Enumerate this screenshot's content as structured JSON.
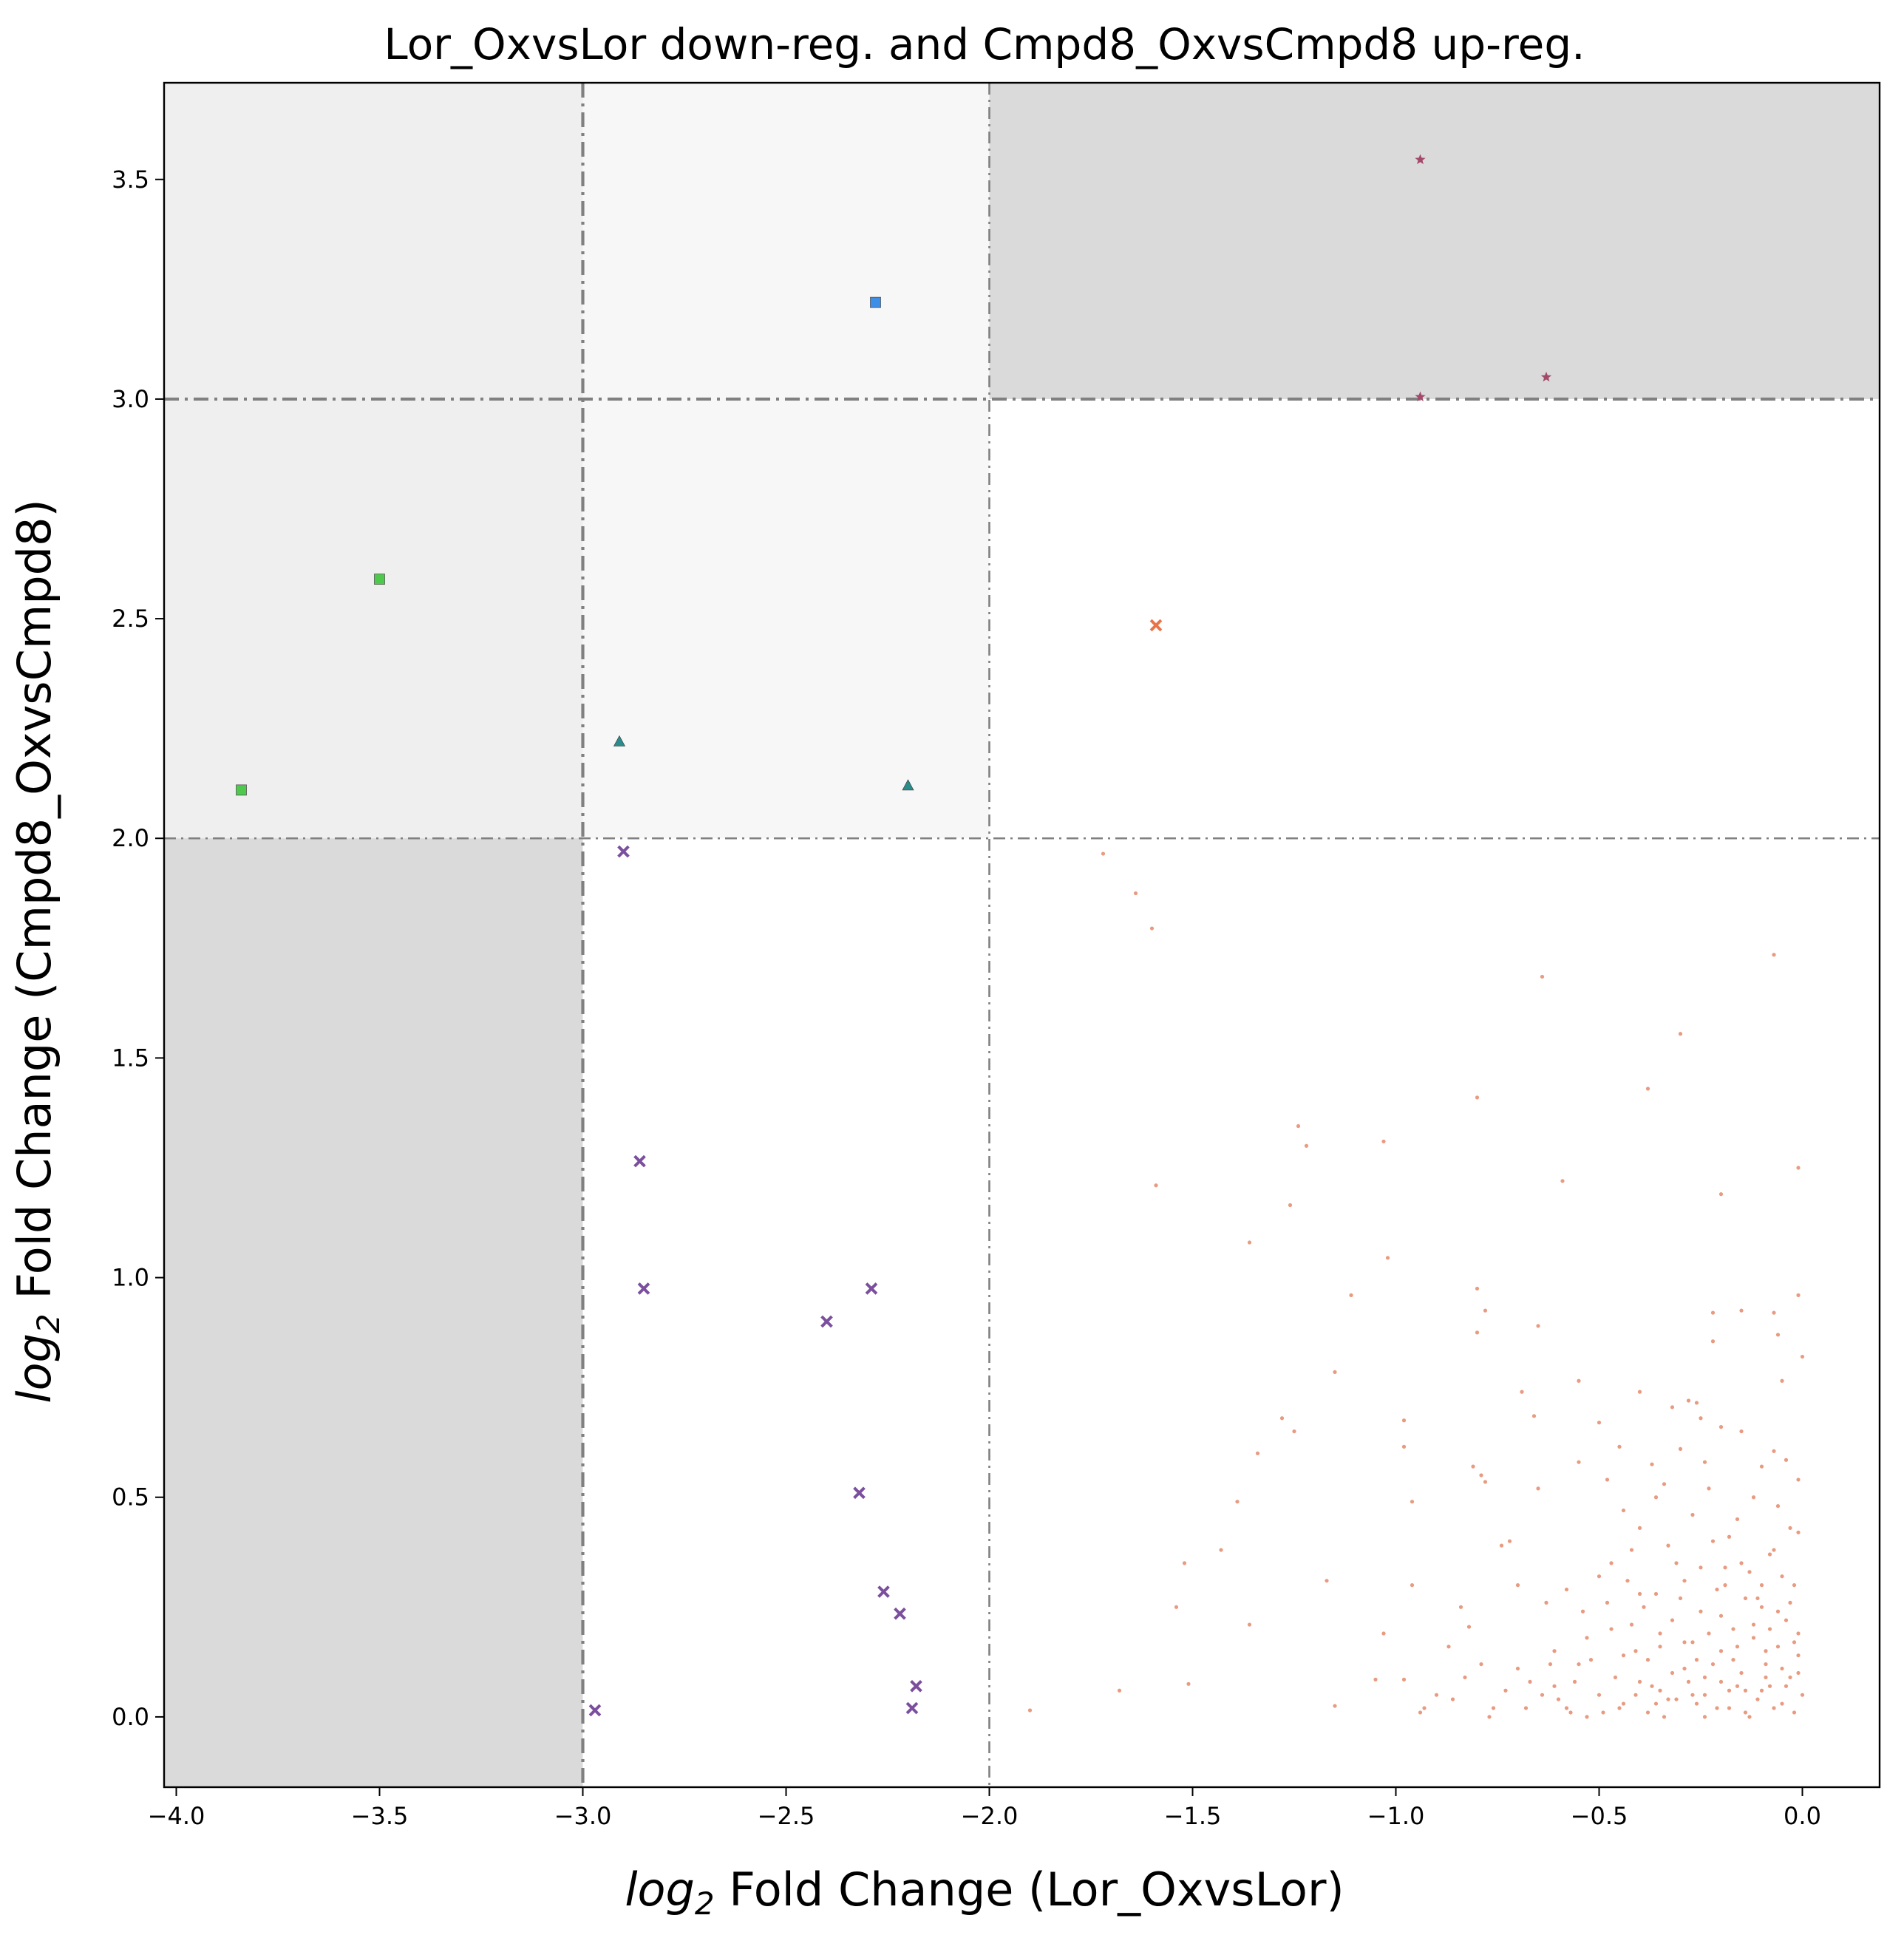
{
  "chart_data": {
    "type": "scatter",
    "title": "Lor_OxvsLor down-reg. and Cmpd8_OxvsCmpd8 up-reg.",
    "xlabel_prefix": "log",
    "xlabel_sub": "2",
    "xlabel_rest": " Fold Change (Lor_OxvsLor)",
    "ylabel_prefix": "log",
    "ylabel_sub": "2",
    "ylabel_rest": " Fold Change (Cmpd8_OxvsCmpd8)",
    "xlim": [
      -4.03,
      0.19
    ],
    "ylim": [
      -0.16,
      3.72
    ],
    "xticks": [
      -4.0,
      -3.5,
      -3.0,
      -2.5,
      -2.0,
      -1.5,
      -1.0,
      -0.5,
      0.0
    ],
    "xtick_labels": [
      "−4.0",
      "−3.5",
      "−3.0",
      "−2.5",
      "−2.0",
      "−1.5",
      "−1.0",
      "−0.5",
      "0.0"
    ],
    "yticks": [
      0.0,
      0.5,
      1.0,
      1.5,
      2.0,
      2.5,
      3.0,
      3.5
    ],
    "ytick_labels": [
      "0.0",
      "0.5",
      "1.0",
      "1.5",
      "2.0",
      "2.5",
      "3.0",
      "3.5"
    ],
    "grid": false,
    "shaded_regions": [
      {
        "x": [
          -4.03,
          -3.0
        ],
        "y": [
          2.0,
          3.72
        ],
        "color": "#efefef"
      },
      {
        "x": [
          -3.0,
          -2.0
        ],
        "y": [
          2.0,
          3.72
        ],
        "color": "#f7f7f7"
      },
      {
        "x": [
          -2.0,
          0.19
        ],
        "y": [
          3.0,
          3.72
        ],
        "color": "#dadada"
      },
      {
        "x": [
          -4.03,
          -3.0
        ],
        "y": [
          -0.16,
          2.0
        ],
        "color": "#dadada"
      }
    ],
    "threshold_lines": [
      {
        "orientation": "vertical",
        "value": -3.0,
        "color": "#808080",
        "weight": "heavy"
      },
      {
        "orientation": "vertical",
        "value": -2.0,
        "color": "#808080",
        "weight": "light"
      },
      {
        "orientation": "horizontal",
        "value": 3.0,
        "color": "#808080",
        "weight": "heavy"
      },
      {
        "orientation": "horizontal",
        "value": 2.0,
        "color": "#808080",
        "weight": "light"
      }
    ],
    "series": [
      {
        "marker": "star",
        "color": "#a34a6b",
        "points": [
          [
            -0.94,
            3.545
          ],
          [
            -0.94,
            3.005
          ],
          [
            -0.63,
            3.05
          ]
        ]
      },
      {
        "marker": "square",
        "color": "#3d8ee6",
        "points": [
          [
            -2.28,
            3.22
          ]
        ]
      },
      {
        "marker": "square",
        "color": "#4ec94e",
        "points": [
          [
            -3.5,
            2.59
          ],
          [
            -3.84,
            2.11
          ]
        ]
      },
      {
        "marker": "triangle",
        "color": "#2b8c8c",
        "points": [
          [
            -2.91,
            2.22
          ],
          [
            -2.2,
            2.12
          ]
        ]
      },
      {
        "marker": "x",
        "color": "#e8744a",
        "points": [
          [
            -1.59,
            2.485
          ]
        ]
      },
      {
        "marker": "x",
        "color": "#7b4f9e",
        "points": [
          [
            -2.9,
            1.97
          ],
          [
            -2.86,
            1.265
          ],
          [
            -2.85,
            0.975
          ],
          [
            -2.29,
            0.975
          ],
          [
            -2.4,
            0.9
          ],
          [
            -2.32,
            0.51
          ],
          [
            -2.26,
            0.285
          ],
          [
            -2.22,
            0.235
          ],
          [
            -2.18,
            0.07
          ],
          [
            -2.19,
            0.02
          ],
          [
            -2.97,
            0.015
          ]
        ]
      },
      {
        "marker": "dot",
        "color": "#e07a55",
        "points": [
          [
            -1.72,
            1.965
          ],
          [
            -1.64,
            1.875
          ],
          [
            -1.6,
            1.795
          ],
          [
            -1.59,
            1.21
          ],
          [
            -0.64,
            1.685
          ],
          [
            -0.07,
            1.735
          ],
          [
            -0.8,
            1.41
          ],
          [
            -0.38,
            1.43
          ],
          [
            -0.3,
            1.555
          ],
          [
            -1.24,
            1.345
          ],
          [
            -1.22,
            1.3
          ],
          [
            -1.03,
            1.31
          ],
          [
            -0.59,
            1.22
          ],
          [
            -0.2,
            1.19
          ],
          [
            -0.01,
            1.25
          ],
          [
            -1.36,
            1.08
          ],
          [
            -1.26,
            1.165
          ],
          [
            -1.02,
            1.045
          ],
          [
            -1.11,
            0.96
          ],
          [
            -0.8,
            0.975
          ],
          [
            -0.78,
            0.925
          ],
          [
            -0.65,
            0.89
          ],
          [
            -0.01,
            0.96
          ],
          [
            -0.07,
            0.92
          ],
          [
            -0.22,
            0.92
          ],
          [
            -0.15,
            0.925
          ],
          [
            -1.15,
            0.785
          ],
          [
            -0.8,
            0.875
          ],
          [
            -0.55,
            0.765
          ],
          [
            -0.22,
            0.855
          ],
          [
            -0.06,
            0.87
          ],
          [
            -0.05,
            0.765
          ],
          [
            0.0,
            0.82
          ],
          [
            -1.28,
            0.68
          ],
          [
            -1.25,
            0.65
          ],
          [
            -0.69,
            0.74
          ],
          [
            -0.66,
            0.685
          ],
          [
            -0.65,
            0.52
          ],
          [
            -1.34,
            0.6
          ],
          [
            -0.98,
            0.675
          ],
          [
            -0.98,
            0.615
          ],
          [
            -0.96,
            0.49
          ],
          [
            -0.81,
            0.57
          ],
          [
            -0.79,
            0.55
          ],
          [
            -0.78,
            0.535
          ],
          [
            -0.4,
            0.74
          ],
          [
            -0.28,
            0.72
          ],
          [
            -0.26,
            0.715
          ],
          [
            -0.32,
            0.705
          ],
          [
            -0.25,
            0.68
          ],
          [
            -0.2,
            0.66
          ],
          [
            -0.15,
            0.65
          ],
          [
            -0.5,
            0.67
          ],
          [
            -0.45,
            0.615
          ],
          [
            -0.37,
            0.575
          ],
          [
            -0.34,
            0.53
          ],
          [
            -0.3,
            0.61
          ],
          [
            -0.24,
            0.58
          ],
          [
            -0.1,
            0.57
          ],
          [
            -0.07,
            0.605
          ],
          [
            -0.04,
            0.585
          ],
          [
            -0.01,
            0.54
          ],
          [
            -0.55,
            0.58
          ],
          [
            -0.48,
            0.54
          ],
          [
            -0.44,
            0.47
          ],
          [
            -0.4,
            0.43
          ],
          [
            -1.39,
            0.49
          ],
          [
            -1.52,
            0.35
          ],
          [
            -1.54,
            0.25
          ],
          [
            -1.43,
            0.38
          ],
          [
            -1.36,
            0.21
          ],
          [
            -1.51,
            0.075
          ],
          [
            -1.68,
            0.06
          ],
          [
            -1.9,
            0.015
          ],
          [
            -1.17,
            0.31
          ],
          [
            -1.15,
            0.025
          ],
          [
            -1.05,
            0.085
          ],
          [
            -1.03,
            0.19
          ],
          [
            -0.98,
            0.085
          ],
          [
            -0.96,
            0.3
          ],
          [
            -0.94,
            0.01
          ],
          [
            -0.9,
            0.05
          ],
          [
            -0.87,
            0.16
          ],
          [
            -0.84,
            0.25
          ],
          [
            -0.82,
            0.205
          ],
          [
            -0.79,
            0.12
          ],
          [
            -0.76,
            0.02
          ],
          [
            -0.74,
            0.39
          ],
          [
            -0.72,
            0.4
          ],
          [
            -0.7,
            0.3
          ],
          [
            -0.67,
            0.08
          ],
          [
            -0.63,
            0.26
          ],
          [
            -0.61,
            0.15
          ],
          [
            -0.6,
            0.04
          ],
          [
            -0.57,
            0.01
          ],
          [
            -0.54,
            0.24
          ],
          [
            -0.5,
            0.32
          ],
          [
            -0.47,
            0.2
          ],
          [
            -0.44,
            0.03
          ],
          [
            -0.42,
            0.38
          ],
          [
            -0.4,
            0.08
          ],
          [
            -0.38,
            0.13
          ],
          [
            -0.36,
            0.28
          ],
          [
            -0.33,
            0.04
          ],
          [
            -0.31,
            0.35
          ],
          [
            -0.29,
            0.17
          ],
          [
            -0.27,
            0.05
          ],
          [
            -0.25,
            0.24
          ],
          [
            -0.24,
            0.09
          ],
          [
            -0.22,
            0.4
          ],
          [
            -0.21,
            0.02
          ],
          [
            -0.2,
            0.15
          ],
          [
            -0.19,
            0.3
          ],
          [
            -0.18,
            0.06
          ],
          [
            -0.17,
            0.2
          ],
          [
            -0.16,
            0.45
          ],
          [
            -0.15,
            0.1
          ],
          [
            -0.14,
            0.01
          ],
          [
            -0.13,
            0.33
          ],
          [
            -0.12,
            0.18
          ],
          [
            -0.11,
            0.04
          ],
          [
            -0.1,
            0.25
          ],
          [
            -0.09,
            0.12
          ],
          [
            -0.08,
            0.07
          ],
          [
            -0.07,
            0.38
          ],
          [
            -0.06,
            0.16
          ],
          [
            -0.05,
            0.03
          ],
          [
            -0.04,
            0.22
          ],
          [
            -0.03,
            0.09
          ],
          [
            -0.02,
            0.3
          ],
          [
            -0.01,
            0.14
          ],
          [
            0.0,
            0.05
          ],
          [
            -0.02,
            0.01
          ],
          [
            -0.05,
            0.11
          ],
          [
            -0.08,
            0.2
          ],
          [
            -0.11,
            0.27
          ],
          [
            -0.14,
            0.06
          ],
          [
            -0.17,
            0.13
          ],
          [
            -0.2,
            0.08
          ],
          [
            -0.23,
            0.19
          ],
          [
            -0.26,
            0.03
          ],
          [
            -0.29,
            0.11
          ],
          [
            -0.32,
            0.22
          ],
          [
            -0.35,
            0.06
          ],
          [
            -0.38,
            0.01
          ],
          [
            -0.41,
            0.15
          ],
          [
            -0.46,
            0.09
          ],
          [
            -0.52,
            0.13
          ],
          [
            -0.58,
            0.29
          ],
          [
            -0.62,
            0.12
          ],
          [
            -0.68,
            0.02
          ],
          [
            -0.73,
            0.06
          ],
          [
            -0.86,
            0.04
          ],
          [
            -0.93,
            0.02
          ],
          [
            -0.03,
            0.43
          ],
          [
            -0.06,
            0.48
          ],
          [
            -0.12,
            0.5
          ],
          [
            -0.18,
            0.41
          ],
          [
            -0.23,
            0.52
          ],
          [
            -0.27,
            0.46
          ],
          [
            -0.33,
            0.39
          ],
          [
            -0.36,
            0.5
          ],
          [
            -0.08,
            0.37
          ],
          [
            -0.01,
            0.42
          ],
          [
            -0.1,
            0.3
          ],
          [
            -0.15,
            0.35
          ],
          [
            -0.25,
            0.34
          ],
          [
            -0.3,
            0.27
          ],
          [
            -0.35,
            0.19
          ],
          [
            -0.39,
            0.25
          ],
          [
            -0.43,
            0.31
          ],
          [
            -0.47,
            0.35
          ],
          [
            -0.12,
            0.21
          ],
          [
            -0.16,
            0.16
          ],
          [
            -0.22,
            0.12
          ],
          [
            -0.28,
            0.08
          ],
          [
            -0.31,
            0.04
          ],
          [
            -0.34,
            0.0
          ],
          [
            -0.37,
            0.07
          ],
          [
            -0.04,
            0.07
          ],
          [
            -0.07,
            0.02
          ],
          [
            -0.09,
            0.09
          ],
          [
            -0.13,
            0.0
          ],
          [
            -0.18,
            0.02
          ],
          [
            -0.24,
            0.0
          ],
          [
            -0.45,
            0.02
          ],
          [
            -0.5,
            0.05
          ],
          [
            -0.53,
            0.0
          ],
          [
            -0.56,
            0.08
          ],
          [
            -0.64,
            0.05
          ],
          [
            -0.7,
            0.11
          ],
          [
            -0.77,
            0.0
          ],
          [
            -0.83,
            0.09
          ],
          [
            -0.44,
            0.14
          ],
          [
            -0.35,
            0.16
          ],
          [
            -0.26,
            0.13
          ],
          [
            -0.2,
            0.23
          ],
          [
            -0.1,
            0.06
          ],
          [
            -0.01,
            0.19
          ],
          [
            -0.03,
            0.26
          ],
          [
            -0.05,
            0.32
          ],
          [
            -0.19,
            0.34
          ],
          [
            -0.21,
            0.29
          ],
          [
            -0.29,
            0.31
          ],
          [
            -0.4,
            0.28
          ],
          [
            -0.42,
            0.21
          ],
          [
            -0.48,
            0.26
          ],
          [
            -0.53,
            0.18
          ],
          [
            -0.55,
            0.12
          ],
          [
            -0.01,
            0.1
          ],
          [
            -0.02,
            0.17
          ],
          [
            -0.06,
            0.24
          ],
          [
            -0.09,
            0.15
          ],
          [
            -0.14,
            0.27
          ],
          [
            -0.16,
            0.07
          ],
          [
            -0.24,
            0.05
          ],
          [
            -0.27,
            0.17
          ],
          [
            -0.32,
            0.1
          ],
          [
            -0.36,
            0.03
          ],
          [
            -0.41,
            0.05
          ],
          [
            -0.49,
            0.01
          ],
          [
            -0.58,
            0.02
          ],
          [
            -0.61,
            0.07
          ]
        ]
      }
    ]
  }
}
